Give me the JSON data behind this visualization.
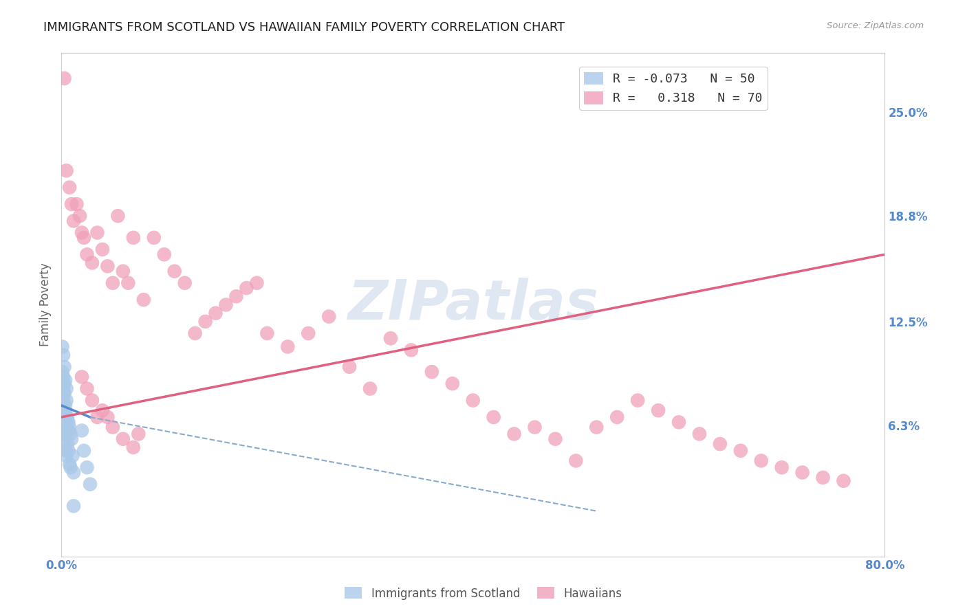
{
  "title": "IMMIGRANTS FROM SCOTLAND VS HAWAIIAN FAMILY POVERTY CORRELATION CHART",
  "source": "Source: ZipAtlas.com",
  "ylabel": "Family Poverty",
  "xlim": [
    0.0,
    0.8
  ],
  "ylim": [
    -0.015,
    0.285
  ],
  "yticks": [
    0.0,
    0.063,
    0.125,
    0.188,
    0.25
  ],
  "ytick_labels": [
    "",
    "6.3%",
    "12.5%",
    "18.8%",
    "25.0%"
  ],
  "xticks": [
    0.0,
    0.1,
    0.2,
    0.3,
    0.4,
    0.5,
    0.6,
    0.7,
    0.8
  ],
  "xtick_labels": [
    "0.0%",
    "",
    "",
    "",
    "",
    "",
    "",
    "",
    "80.0%"
  ],
  "watermark": "ZIPatlas",
  "legend_entries": [
    {
      "label": "R = -0.073   N = 50",
      "color": "#aac8e8"
    },
    {
      "label": "R =   0.318   N = 70",
      "color": "#f0a0b8"
    }
  ],
  "scatter_blue": {
    "color": "#aac8e8",
    "x": [
      0.001,
      0.001,
      0.001,
      0.001,
      0.002,
      0.002,
      0.002,
      0.002,
      0.002,
      0.003,
      0.003,
      0.003,
      0.003,
      0.004,
      0.004,
      0.004,
      0.005,
      0.005,
      0.005,
      0.006,
      0.006,
      0.007,
      0.007,
      0.008,
      0.008,
      0.009,
      0.009,
      0.01,
      0.011,
      0.012,
      0.001,
      0.001,
      0.002,
      0.002,
      0.003,
      0.003,
      0.004,
      0.005,
      0.006,
      0.007,
      0.001,
      0.002,
      0.003,
      0.004,
      0.005,
      0.02,
      0.022,
      0.025,
      0.028,
      0.012
    ],
    "y": [
      0.08,
      0.072,
      0.068,
      0.062,
      0.085,
      0.078,
      0.075,
      0.065,
      0.058,
      0.082,
      0.07,
      0.062,
      0.055,
      0.075,
      0.06,
      0.048,
      0.078,
      0.062,
      0.045,
      0.068,
      0.052,
      0.065,
      0.048,
      0.062,
      0.04,
      0.058,
      0.038,
      0.055,
      0.045,
      0.035,
      0.095,
      0.088,
      0.092,
      0.082,
      0.088,
      0.072,
      0.07,
      0.068,
      0.065,
      0.06,
      0.11,
      0.105,
      0.098,
      0.09,
      0.085,
      0.06,
      0.048,
      0.038,
      0.028,
      0.015
    ]
  },
  "scatter_pink": {
    "color": "#f0a0b8",
    "x": [
      0.003,
      0.005,
      0.008,
      0.01,
      0.012,
      0.015,
      0.018,
      0.02,
      0.022,
      0.025,
      0.03,
      0.035,
      0.04,
      0.045,
      0.05,
      0.055,
      0.06,
      0.065,
      0.07,
      0.08,
      0.09,
      0.1,
      0.11,
      0.12,
      0.13,
      0.14,
      0.15,
      0.16,
      0.17,
      0.18,
      0.19,
      0.2,
      0.22,
      0.24,
      0.26,
      0.28,
      0.3,
      0.32,
      0.34,
      0.36,
      0.38,
      0.4,
      0.42,
      0.44,
      0.46,
      0.48,
      0.5,
      0.52,
      0.54,
      0.56,
      0.58,
      0.6,
      0.62,
      0.64,
      0.66,
      0.68,
      0.7,
      0.72,
      0.74,
      0.76,
      0.02,
      0.025,
      0.03,
      0.035,
      0.04,
      0.045,
      0.05,
      0.06,
      0.07,
      0.075
    ],
    "y": [
      0.27,
      0.215,
      0.205,
      0.195,
      0.185,
      0.195,
      0.188,
      0.178,
      0.175,
      0.165,
      0.16,
      0.178,
      0.168,
      0.158,
      0.148,
      0.188,
      0.155,
      0.148,
      0.175,
      0.138,
      0.175,
      0.165,
      0.155,
      0.148,
      0.118,
      0.125,
      0.13,
      0.135,
      0.14,
      0.145,
      0.148,
      0.118,
      0.11,
      0.118,
      0.128,
      0.098,
      0.085,
      0.115,
      0.108,
      0.095,
      0.088,
      0.078,
      0.068,
      0.058,
      0.062,
      0.055,
      0.042,
      0.062,
      0.068,
      0.078,
      0.072,
      0.065,
      0.058,
      0.052,
      0.048,
      0.042,
      0.038,
      0.035,
      0.032,
      0.03,
      0.092,
      0.085,
      0.078,
      0.068,
      0.072,
      0.068,
      0.062,
      0.055,
      0.05,
      0.058
    ]
  },
  "trendline_blue_solid": {
    "color": "#5588cc",
    "x": [
      0.0,
      0.028
    ],
    "y": [
      0.075,
      0.068
    ]
  },
  "trendline_blue_dashed": {
    "color": "#88aacc",
    "x": [
      0.028,
      0.52
    ],
    "y": [
      0.068,
      0.012
    ]
  },
  "trendline_pink": {
    "color": "#e06080",
    "x": [
      0.0,
      0.8
    ],
    "y": [
      0.068,
      0.165
    ]
  },
  "background_color": "#ffffff",
  "grid_color": "#dddddd",
  "axis_color": "#cccccc",
  "tick_label_color": "#5588cc",
  "title_fontsize": 13,
  "label_fontsize": 12,
  "tick_fontsize": 12,
  "source_text": "Source: ZipAtlas.com",
  "bottom_legend_labels": [
    "Immigrants from Scotland",
    "Hawaiians"
  ]
}
